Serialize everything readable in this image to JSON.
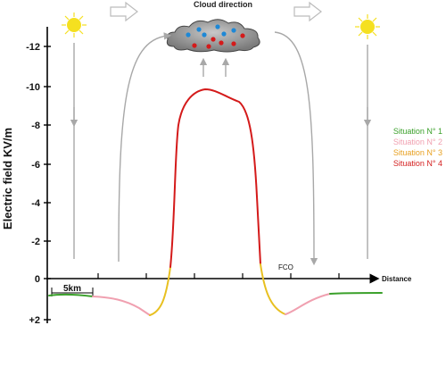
{
  "title": "Cloud direction",
  "y_axis_label": "Electric field KV/m",
  "x_axis_label": "Distance",
  "scale_label": "5km",
  "fco_label": "FCO",
  "y_ticks": [
    "-12",
    "-10",
    "-8",
    "-6",
    "-4",
    "-2",
    "0",
    "+2"
  ],
  "legend": [
    {
      "label": "Situation N° 1",
      "color": "#3aa02a"
    },
    {
      "label": "Situation N° 2",
      "color": "#f0a0b0"
    },
    {
      "label": "Situation N° 3",
      "color": "#e8a020"
    },
    {
      "label": "Situation N° 4",
      "color": "#d42020"
    }
  ],
  "colors": {
    "situation_1": "#3aa02a",
    "situation_2": "#f0a0b0",
    "situation_3": "#e8c020",
    "situation_4": "#d41a1a",
    "flow_arrows": "#a8a8a8",
    "sun": "#f5e020",
    "cloud": "#8e8e8e"
  },
  "icons": [
    "sun-icon",
    "cloud-icon",
    "outline-right-arrow-icon"
  ]
}
